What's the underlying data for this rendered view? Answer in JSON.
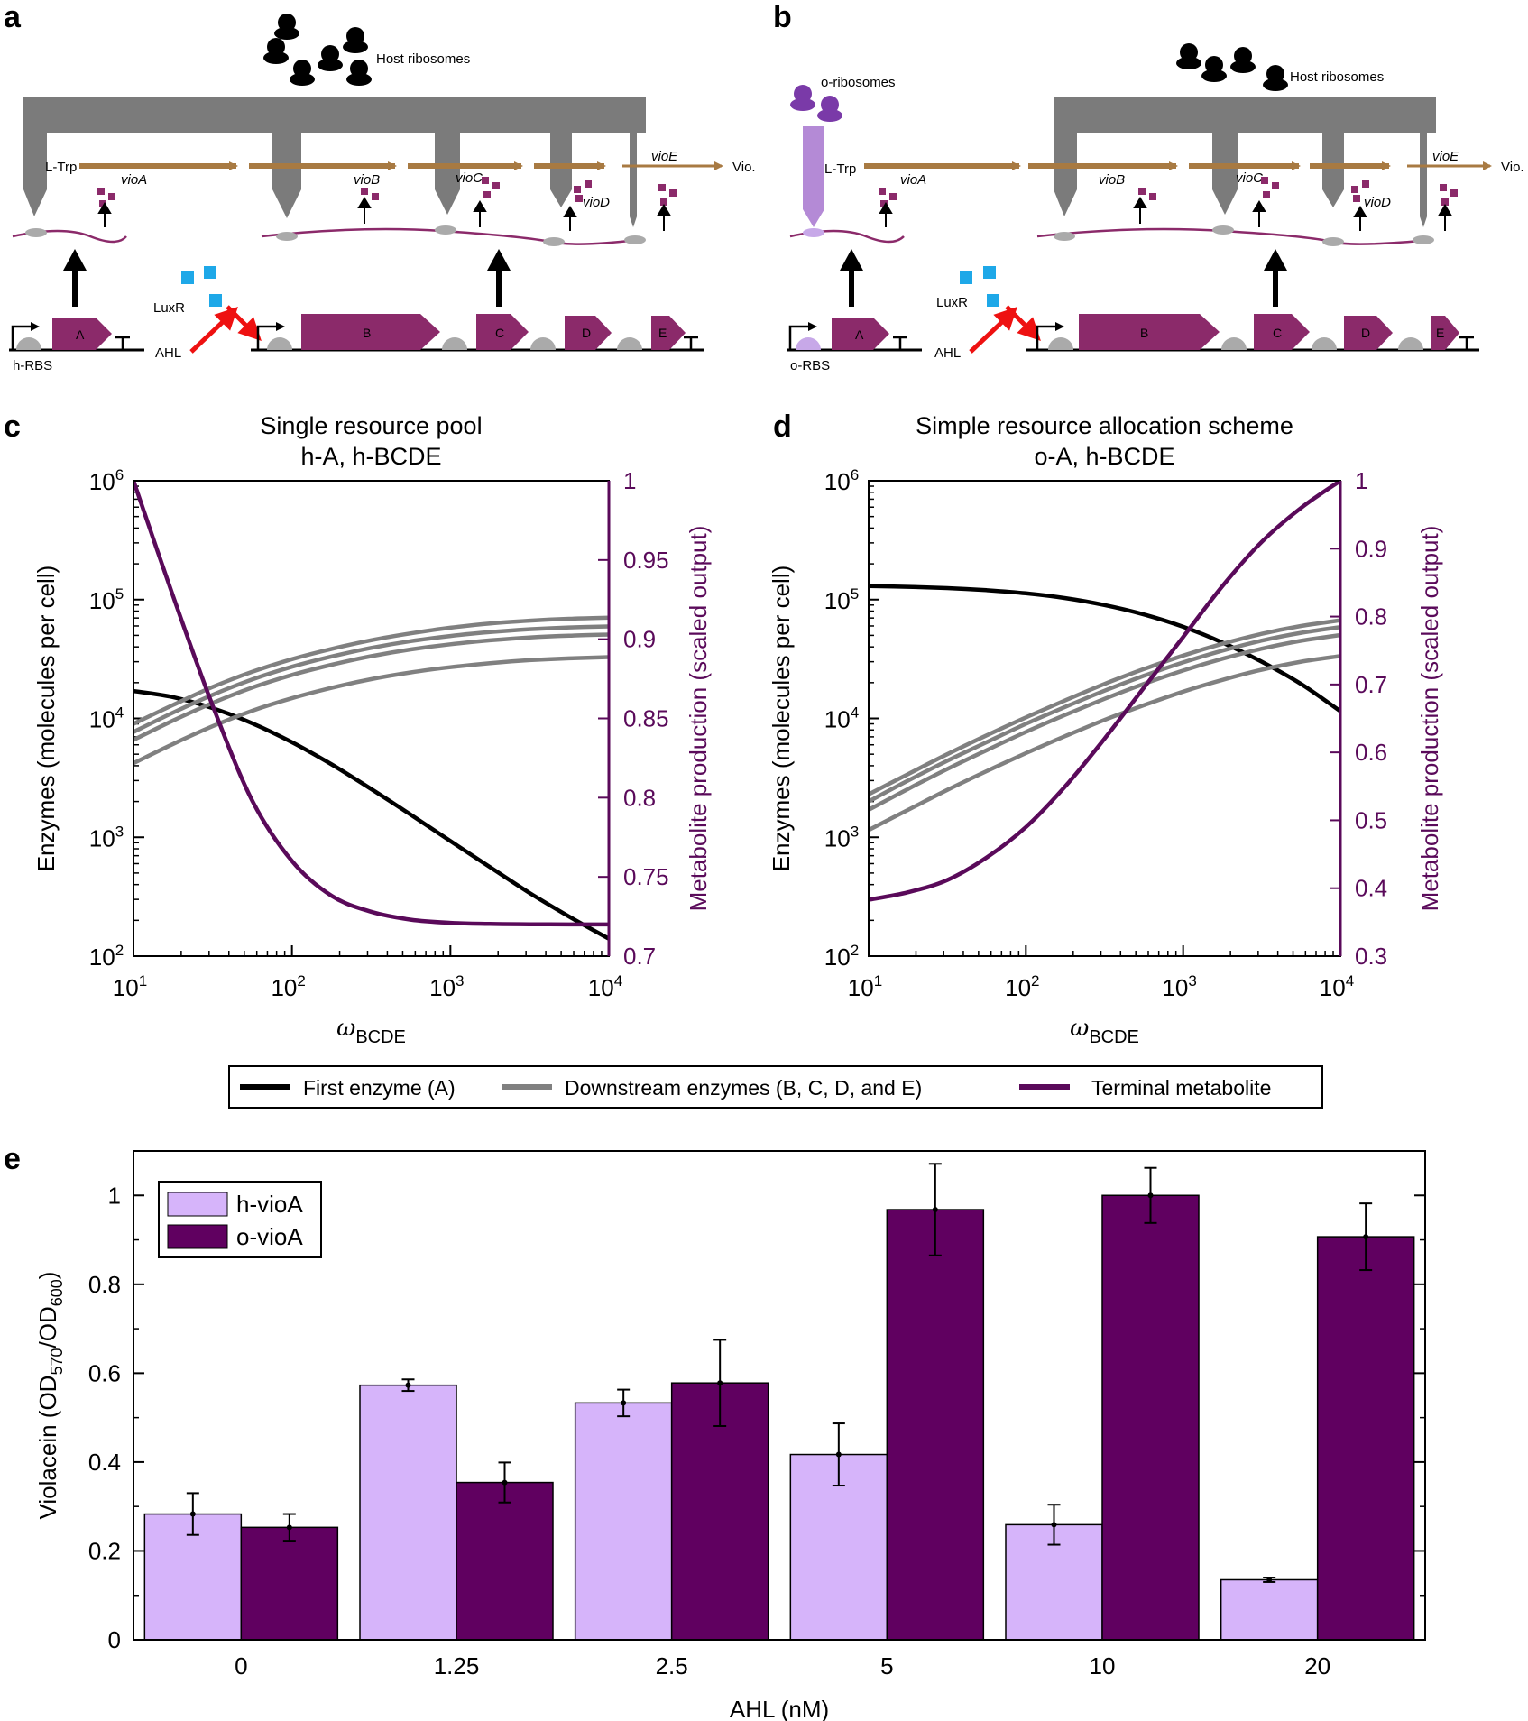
{
  "colors": {
    "mrna": "#8b2a6a",
    "gene_box": "#8b2a6a",
    "pathway": "#a87a42",
    "host_ribosome": "#7b7b7b",
    "o_ribosome": "#b48ad6",
    "o_ribosome_dot": "#7a3aa8",
    "luxr": "#1ea8e8",
    "ahl_arrow": "#ee1111",
    "rbs_grey": "#aaaaaa",
    "rbs_purple": "#c7a8e8",
    "first_enzyme": "#000000",
    "downstream": "#808080",
    "metabolite": "#5a0a5a",
    "h_vioA": "#d6b4fa",
    "o_vioA": "#600060"
  },
  "panel_a": {
    "letter": "a",
    "ribosome_label": "Host ribosomes",
    "substrate": "L-Trp",
    "product": "Vio.",
    "genes": [
      "vioA",
      "vioB",
      "vioC",
      "vioD",
      "vioE"
    ],
    "luxr": "LuxR",
    "ahl": "AHL",
    "rbs": "h-RBS",
    "boxes": [
      "A",
      "B",
      "C",
      "D",
      "E"
    ]
  },
  "panel_b": {
    "letter": "b",
    "o_ribosome_label": "o-ribosomes",
    "ribosome_label": "Host ribosomes",
    "substrate": "L-Trp",
    "product": "Vio.",
    "genes": [
      "vioA",
      "vioB",
      "vioC",
      "vioD",
      "vioE"
    ],
    "luxr": "LuxR",
    "ahl": "AHL",
    "rbs": "o-RBS",
    "boxes": [
      "A",
      "B",
      "C",
      "D",
      "E"
    ]
  },
  "legend_cd": {
    "first": "First enzyme (A)",
    "downstream": "Downstream enzymes (B, C, D, and E)",
    "metabolite": "Terminal metabolite"
  },
  "chart_data": [
    {
      "panel": "c",
      "type": "line",
      "title": [
        "Single resource pool",
        "h-A, h-BCDE"
      ],
      "xlabel": "ω_BCDE",
      "x_scale": "log",
      "xlim": [
        10,
        10000
      ],
      "x_ticks": [
        {
          "base": "10",
          "exp": "1"
        },
        {
          "base": "10",
          "exp": "2"
        },
        {
          "base": "10",
          "exp": "3"
        },
        {
          "base": "10",
          "exp": "4"
        }
      ],
      "ylabel_left": "Enzymes (molecules per cell)",
      "y_left_scale": "log",
      "ylim_left": [
        100,
        1000000
      ],
      "y_left_ticks": [
        {
          "base": "10",
          "exp": "2"
        },
        {
          "base": "10",
          "exp": "3"
        },
        {
          "base": "10",
          "exp": "4"
        },
        {
          "base": "10",
          "exp": "5"
        },
        {
          "base": "10",
          "exp": "6"
        }
      ],
      "ylabel_right": "Metabolite production (scaled output)",
      "ylim_right": [
        0.7,
        1.0
      ],
      "y_right_ticks": [
        "0.7",
        "0.75",
        "0.8",
        "0.85",
        "0.9",
        "0.95",
        "1"
      ],
      "x": [
        10,
        17.8,
        31.6,
        56.2,
        100,
        178,
        316,
        562,
        1000,
        1780,
        3160,
        5620,
        10000
      ],
      "series": [
        {
          "name": "First enzyme (A)",
          "axis": "left",
          "values": [
            17000,
            15100,
            12200,
            9100,
            6300,
            4100,
            2550,
            1550,
            930,
            560,
            340,
            215,
            140
          ]
        },
        {
          "name": "Downstream enzyme 1",
          "axis": "left",
          "values": [
            9000,
            13000,
            18400,
            24700,
            31500,
            38500,
            45500,
            52000,
            58000,
            63000,
            66500,
            69000,
            70500
          ]
        },
        {
          "name": "Downstream enzyme 2",
          "axis": "left",
          "values": [
            7700,
            11200,
            15800,
            21300,
            27200,
            33200,
            39200,
            44700,
            49400,
            53300,
            56300,
            58300,
            59500
          ]
        },
        {
          "name": "Downstream enzyme 3",
          "axis": "left",
          "values": [
            6600,
            9600,
            13500,
            18200,
            23200,
            28300,
            33400,
            38100,
            42100,
            45400,
            48000,
            49700,
            50800
          ]
        },
        {
          "name": "Downstream enzyme 4",
          "axis": "left",
          "values": [
            4200,
            6100,
            8600,
            11600,
            14800,
            18100,
            21400,
            24400,
            27000,
            29200,
            30900,
            32000,
            32800
          ]
        },
        {
          "name": "Terminal metabolite",
          "axis": "right",
          "values": [
            1.0,
            0.927,
            0.858,
            0.798,
            0.76,
            0.738,
            0.728,
            0.723,
            0.721,
            0.7203,
            0.7201,
            0.72,
            0.72
          ]
        }
      ]
    },
    {
      "panel": "d",
      "type": "line",
      "title": [
        "Simple resource allocation scheme",
        "o-A, h-BCDE"
      ],
      "xlabel": "ω_BCDE",
      "x_scale": "log",
      "xlim": [
        10,
        10000
      ],
      "x_ticks": [
        {
          "base": "10",
          "exp": "1"
        },
        {
          "base": "10",
          "exp": "2"
        },
        {
          "base": "10",
          "exp": "3"
        },
        {
          "base": "10",
          "exp": "4"
        }
      ],
      "ylabel_left": "Enzymes (molecules per cell)",
      "y_left_scale": "log",
      "ylim_left": [
        100,
        1000000
      ],
      "y_left_ticks": [
        {
          "base": "10",
          "exp": "2"
        },
        {
          "base": "10",
          "exp": "3"
        },
        {
          "base": "10",
          "exp": "4"
        },
        {
          "base": "10",
          "exp": "5"
        },
        {
          "base": "10",
          "exp": "6"
        }
      ],
      "ylabel_right": "Metabolite production (scaled output)",
      "ylim_right": [
        0.3,
        1.0
      ],
      "y_right_ticks": [
        "0.3",
        "0.4",
        "0.5",
        "0.6",
        "0.7",
        "0.8",
        "0.9",
        "1"
      ],
      "x": [
        10,
        17.8,
        31.6,
        56.2,
        100,
        178,
        316,
        562,
        1000,
        1780,
        3160,
        5620,
        10000
      ],
      "series": [
        {
          "name": "First enzyme (A)",
          "axis": "left",
          "values": [
            130000,
            128000,
            125000,
            120000,
            113000,
            103000,
            90000,
            75000,
            59000,
            43500,
            30000,
            19500,
            11500
          ]
        },
        {
          "name": "Downstream enzyme 1",
          "axis": "left",
          "values": [
            2300,
            3400,
            5000,
            7200,
            10200,
            14200,
            19500,
            26000,
            33800,
            42500,
            51500,
            60000,
            67000
          ]
        },
        {
          "name": "Downstream enzyme 2",
          "axis": "left",
          "values": [
            2000,
            3000,
            4400,
            6300,
            9000,
            12500,
            17100,
            22800,
            29600,
            37200,
            45200,
            52500,
            58700
          ]
        },
        {
          "name": "Downstream enzyme 3",
          "axis": "left",
          "values": [
            1700,
            2550,
            3750,
            5400,
            7700,
            10700,
            14600,
            19500,
            25300,
            31800,
            38600,
            45000,
            50300
          ]
        },
        {
          "name": "Downstream enzyme 4",
          "axis": "left",
          "values": [
            1150,
            1700,
            2500,
            3600,
            5100,
            7100,
            9700,
            12900,
            16800,
            21100,
            25700,
            30000,
            33500
          ]
        },
        {
          "name": "Terminal metabolite",
          "axis": "right",
          "values": [
            0.383,
            0.394,
            0.412,
            0.445,
            0.49,
            0.55,
            0.62,
            0.695,
            0.77,
            0.845,
            0.91,
            0.96,
            1.0
          ]
        }
      ]
    },
    {
      "panel": "e",
      "type": "bar",
      "xlabel": "AHL (nM)",
      "ylabel": "Violacein (OD570/OD600)",
      "ylabel_parts": {
        "pre": "Violacein (OD",
        "sub1": "570",
        "mid": "/OD",
        "sub2": "600",
        "post": ")"
      },
      "ylim": [
        0,
        1.1
      ],
      "y_ticks": [
        "0",
        "0.2",
        "0.4",
        "0.6",
        "0.8",
        "1"
      ],
      "categories": [
        "0",
        "1.25",
        "2.5",
        "5",
        "10",
        "20"
      ],
      "series": [
        {
          "name": "h-vioA",
          "values": [
            0.283,
            0.573,
            0.533,
            0.417,
            0.259,
            0.135
          ],
          "errors": [
            0.047,
            0.013,
            0.03,
            0.07,
            0.045,
            0.005
          ]
        },
        {
          "name": "o-vioA",
          "values": [
            0.253,
            0.354,
            0.578,
            0.968,
            1.0,
            0.907
          ],
          "errors": [
            0.03,
            0.045,
            0.097,
            0.103,
            0.062,
            0.075
          ]
        }
      ],
      "legend_position": "top-left"
    }
  ]
}
